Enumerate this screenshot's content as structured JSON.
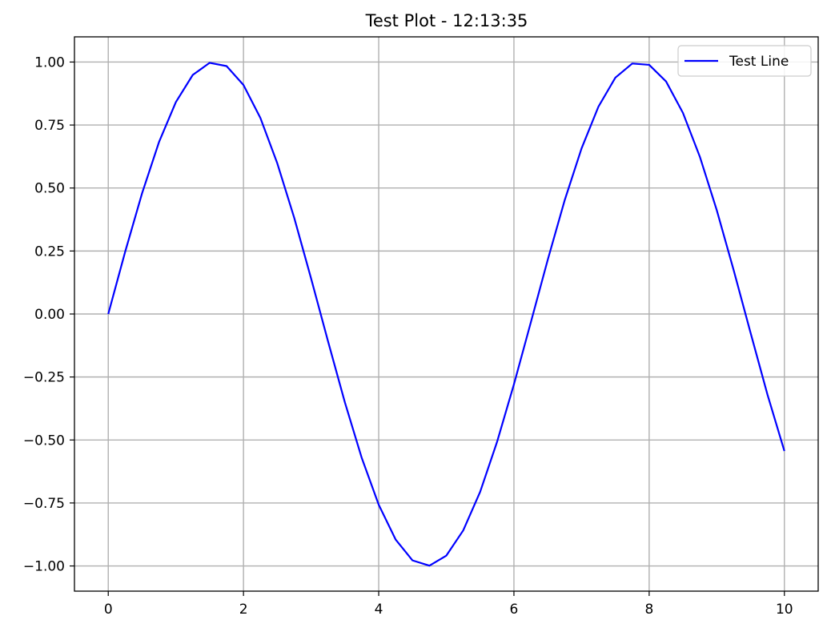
{
  "chart_data": {
    "type": "line",
    "title": "Test Plot - 12:13:35",
    "xlabel": "",
    "ylabel": "",
    "xlim": [
      -0.5,
      10.5
    ],
    "ylim": [
      -1.1,
      1.1
    ],
    "x_ticks": [
      0,
      2,
      4,
      6,
      8,
      10
    ],
    "x_tick_labels": [
      "0",
      "2",
      "4",
      "6",
      "8",
      "10"
    ],
    "y_ticks": [
      1.0,
      0.75,
      0.5,
      0.25,
      0.0,
      -0.25,
      -0.5,
      -0.75,
      -1.0
    ],
    "y_tick_labels": [
      "1.00",
      "0.75",
      "0.50",
      "0.25",
      "0.00",
      "−0.25",
      "−0.50",
      "−0.75",
      "−1.00"
    ],
    "grid": true,
    "legend_position": "top-right",
    "series": [
      {
        "name": "Test Line",
        "color": "#0000ff",
        "x": [
          0.0,
          0.25,
          0.5,
          0.75,
          1.0,
          1.25,
          1.5,
          1.75,
          2.0,
          2.25,
          2.5,
          2.75,
          3.0,
          3.25,
          3.5,
          3.75,
          4.0,
          4.25,
          4.5,
          4.75,
          5.0,
          5.25,
          5.5,
          5.75,
          6.0,
          6.25,
          6.5,
          6.75,
          7.0,
          7.25,
          7.5,
          7.75,
          8.0,
          8.25,
          8.5,
          8.75,
          9.0,
          9.25,
          9.5,
          9.75,
          10.0
        ],
        "y": [
          0.0,
          0.247,
          0.479,
          0.682,
          0.841,
          0.949,
          0.997,
          0.984,
          0.909,
          0.778,
          0.598,
          0.382,
          0.141,
          -0.108,
          -0.351,
          -0.572,
          -0.757,
          -0.895,
          -0.978,
          -0.999,
          -0.959,
          -0.859,
          -0.706,
          -0.508,
          -0.279,
          -0.033,
          0.215,
          0.451,
          0.657,
          0.823,
          0.938,
          0.994,
          0.989,
          0.923,
          0.798,
          0.624,
          0.412,
          0.174,
          -0.075,
          -0.32,
          -0.544
        ]
      }
    ]
  }
}
